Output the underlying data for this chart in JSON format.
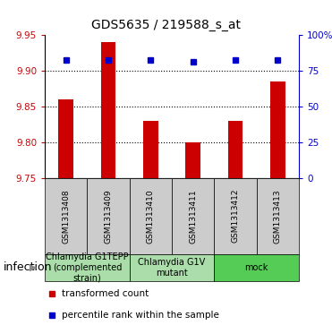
{
  "title": "GDS5635 / 219588_s_at",
  "samples": [
    "GSM1313408",
    "GSM1313409",
    "GSM1313410",
    "GSM1313411",
    "GSM1313412",
    "GSM1313413"
  ],
  "bar_values": [
    9.86,
    9.94,
    9.83,
    9.8,
    9.83,
    9.885
  ],
  "percentile_values": [
    9.915,
    9.915,
    9.915,
    9.912,
    9.915,
    9.915
  ],
  "ymin": 9.75,
  "ymax": 9.95,
  "yticks": [
    9.75,
    9.8,
    9.85,
    9.9,
    9.95
  ],
  "y2ticks": [
    0,
    25,
    50,
    75,
    100
  ],
  "y2labels": [
    "0",
    "25",
    "50",
    "75",
    "100%"
  ],
  "bar_color": "#cc0000",
  "percentile_color": "#0000cc",
  "bar_width": 0.35,
  "group_info": [
    {
      "span": [
        0,
        1
      ],
      "label": "Chlamydia G1TEPP\n(complemented\nstrain)",
      "color": "#aaddaa"
    },
    {
      "span": [
        2,
        3
      ],
      "label": "Chlamydia G1V\nmutant",
      "color": "#aaddaa"
    },
    {
      "span": [
        4,
        5
      ],
      "label": "mock",
      "color": "#55cc55"
    }
  ],
  "sample_box_color": "#cccccc",
  "factor_label": "infection",
  "legend_bar_label": "transformed count",
  "legend_pct_label": "percentile rank within the sample",
  "left_color": "#cc0000",
  "right_color": "#0000cc",
  "title_fontsize": 10,
  "tick_fontsize": 7.5,
  "sample_fontsize": 6.5,
  "group_fontsize": 7,
  "legend_fontsize": 7.5,
  "infection_fontsize": 9
}
